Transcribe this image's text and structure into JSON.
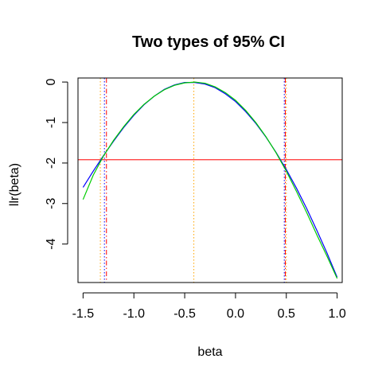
{
  "chart_data": {
    "type": "line",
    "title": "Two types of 95% CI",
    "xlabel": "beta",
    "ylabel": "llr(beta)",
    "xlim": [
      -1.55,
      1.05
    ],
    "ylim": [
      -4.95,
      0.1
    ],
    "xticks": [
      -1.5,
      -1.0,
      -0.5,
      0.0,
      0.5,
      1.0
    ],
    "xtick_labels": [
      "-1.5",
      "-1.0",
      "-0.5",
      "0.0",
      "0.5",
      "1.0"
    ],
    "yticks": [
      0,
      -1,
      -2,
      -3,
      -4
    ],
    "ytick_labels": [
      "0",
      "-1",
      "-2",
      "-3",
      "-4"
    ],
    "grid": false,
    "series": [
      {
        "color": "#0000ff",
        "x": [
          -1.5,
          -1.4,
          -1.3,
          -1.2,
          -1.1,
          -1.0,
          -0.9,
          -0.8,
          -0.7,
          -0.6,
          -0.5,
          -0.4,
          -0.3,
          -0.2,
          -0.1,
          0.0,
          0.1,
          0.2,
          0.3,
          0.4,
          0.5,
          0.6,
          0.7,
          0.8,
          0.9,
          1.0
        ],
        "y": [
          -2.6,
          -2.2,
          -1.82,
          -1.46,
          -1.12,
          -0.82,
          -0.56,
          -0.35,
          -0.18,
          -0.07,
          -0.01,
          -0.01,
          -0.05,
          -0.14,
          -0.29,
          -0.48,
          -0.73,
          -1.02,
          -1.36,
          -1.74,
          -2.16,
          -2.62,
          -3.12,
          -3.66,
          -4.22,
          -4.82
        ]
      },
      {
        "color": "#00cd00",
        "x": [
          -1.5,
          -1.4,
          -1.3,
          -1.2,
          -1.1,
          -1.0,
          -0.9,
          -0.8,
          -0.7,
          -0.6,
          -0.5,
          -0.4,
          -0.3,
          -0.2,
          -0.1,
          0.0,
          0.1,
          0.2,
          0.3,
          0.4,
          0.5,
          0.6,
          0.7,
          0.8,
          0.9,
          1.0
        ],
        "y": [
          -2.9,
          -2.3,
          -1.83,
          -1.44,
          -1.1,
          -0.8,
          -0.55,
          -0.35,
          -0.19,
          -0.08,
          -0.02,
          0.0,
          -0.03,
          -0.12,
          -0.26,
          -0.45,
          -0.7,
          -1.0,
          -1.35,
          -1.75,
          -2.2,
          -2.7,
          -3.22,
          -3.77,
          -4.3,
          -4.85
        ]
      }
    ],
    "hlines": [
      {
        "y": -1.92,
        "color": "#ff0000",
        "style": "solid"
      }
    ],
    "vlines": [
      {
        "x": -1.33,
        "color": "#ffa500",
        "style": "dotted"
      },
      {
        "x": -1.29,
        "color": "#0000ff",
        "style": "dotted"
      },
      {
        "x": -1.27,
        "color": "#ff0000",
        "style": "dashed"
      },
      {
        "x": -0.41,
        "color": "#ffa500",
        "style": "dotted"
      },
      {
        "x": 0.48,
        "color": "#0000ff",
        "style": "dotted"
      },
      {
        "x": 0.49,
        "color": "#ff0000",
        "style": "dashed"
      },
      {
        "x": 0.5,
        "color": "#ffa500",
        "style": "dotted"
      }
    ]
  }
}
